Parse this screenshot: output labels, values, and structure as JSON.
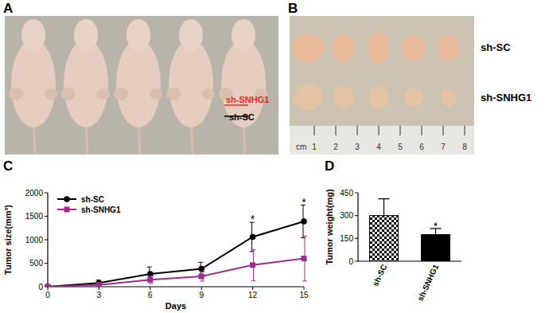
{
  "panel_labels": [
    "A",
    "B",
    "C",
    "D"
  ],
  "photo_a": {
    "labels": [
      "sh-SNHG1",
      "sh-SC"
    ],
    "colors": [
      "#e8281e",
      "#000000"
    ]
  },
  "photo_b": {
    "labels": [
      "sh-SC",
      "sh-SNHG1"
    ],
    "ruler": {
      "unit": "cm",
      "ticks": [
        1,
        2,
        3,
        4,
        5,
        6,
        7,
        8
      ]
    }
  },
  "chart_data": [
    {
      "type": "line",
      "x_label": "Days",
      "y_label": "Tumor size(mm³)",
      "x": [
        0,
        3,
        6,
        9,
        12,
        15
      ],
      "xlim": [
        0,
        15
      ],
      "xticks": [
        0,
        3,
        6,
        9,
        12,
        15
      ],
      "ylim": [
        0,
        2000
      ],
      "yticks": [
        0,
        500,
        1000,
        1500,
        2000
      ],
      "legend": "upper-left",
      "series": [
        {
          "name": "sh-SC",
          "color": "#000000",
          "marker": "circle",
          "values": [
            0,
            80,
            270,
            380,
            1060,
            1390
          ],
          "errors": [
            10,
            60,
            150,
            140,
            310,
            350
          ]
        },
        {
          "name": "sh-SNHG1",
          "color": "#9b2d8f",
          "marker": "square",
          "values": [
            0,
            40,
            150,
            220,
            460,
            600
          ],
          "errors": [
            10,
            40,
            80,
            100,
            330,
            480
          ]
        }
      ],
      "annotations": [
        {
          "x": 12,
          "y": 1450,
          "text": "*"
        },
        {
          "x": 15,
          "y": 1820,
          "text": "*"
        }
      ]
    },
    {
      "type": "bar",
      "y_label": "Tumor weight(mg)",
      "categories": [
        "sh-SC",
        "sh-SNHG1"
      ],
      "values": [
        300,
        175
      ],
      "errors": [
        110,
        40
      ],
      "colors": [
        "#000000",
        "#000000"
      ],
      "ylim": [
        0,
        450
      ],
      "yticks": [
        0,
        150,
        300,
        450
      ],
      "annotations": [
        {
          "x": "sh-SNHG1",
          "y": 235,
          "text": "*"
        }
      ]
    }
  ]
}
